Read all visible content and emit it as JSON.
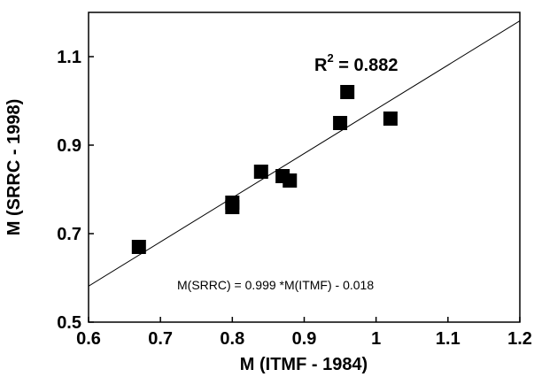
{
  "chart_data": {
    "type": "scatter",
    "xlabel": "M (ITMF - 1984)",
    "ylabel": "M (SRRC - 1998)",
    "xlim": [
      0.6,
      1.2
    ],
    "ylim": [
      0.5,
      1.2
    ],
    "x_ticks": [
      "0.6",
      "0.7",
      "0.8",
      "0.9",
      "1",
      "1.1",
      "1.2"
    ],
    "y_ticks": [
      "0.5",
      "0.7",
      "0.9",
      "1.1"
    ],
    "grid": false,
    "series": [
      {
        "marker": "square",
        "color": "#000000",
        "points": [
          {
            "x": 0.67,
            "y": 0.67
          },
          {
            "x": 0.8,
            "y": 0.76
          },
          {
            "x": 0.8,
            "y": 0.77
          },
          {
            "x": 0.84,
            "y": 0.84
          },
          {
            "x": 0.87,
            "y": 0.83
          },
          {
            "x": 0.88,
            "y": 0.82
          },
          {
            "x": 0.95,
            "y": 0.95
          },
          {
            "x": 0.96,
            "y": 1.02
          },
          {
            "x": 1.02,
            "y": 0.96
          }
        ]
      }
    ],
    "fit_line": {
      "slope": 0.999,
      "intercept": -0.018,
      "x_range": [
        0.6,
        1.2
      ]
    },
    "annotations": {
      "r2_base": "R",
      "r2_sup": "2",
      "r2_value": " = 0.882",
      "equation": "M(SRRC) = 0.999 *M(ITMF) - 0.018"
    }
  }
}
